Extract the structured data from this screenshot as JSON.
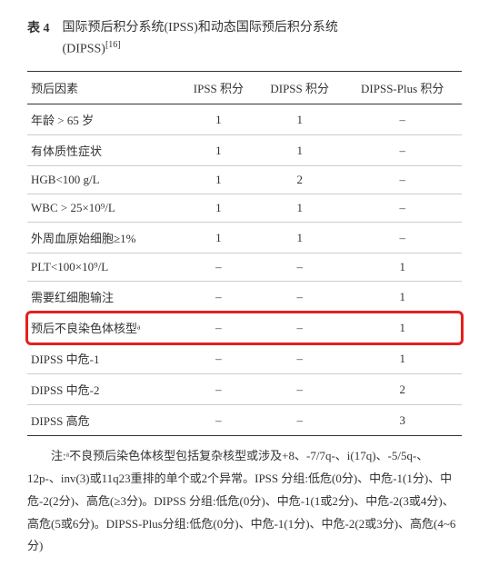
{
  "title": {
    "label": "表 4",
    "text_line1": "国际预后积分系统(IPSS)和动态国际预后积分系统",
    "text_line2": "(DIPSS)",
    "ref": "[16]"
  },
  "columns": [
    "预后因素",
    "IPSS 积分",
    "DIPSS 积分",
    "DIPSS-Plus 积分"
  ],
  "rows": [
    {
      "factor": "年龄 > 65 岁",
      "ipss": "1",
      "dipss": "1",
      "plus": "–",
      "highlight": false
    },
    {
      "factor": "有体质性症状",
      "ipss": "1",
      "dipss": "1",
      "plus": "–",
      "highlight": false
    },
    {
      "factor": "HGB<100 g/L",
      "ipss": "1",
      "dipss": "2",
      "plus": "–",
      "highlight": false
    },
    {
      "factor": "WBC > 25×10⁹/L",
      "ipss": "1",
      "dipss": "1",
      "plus": "–",
      "highlight": false
    },
    {
      "factor": "外周血原始细胞≥1%",
      "ipss": "1",
      "dipss": "1",
      "plus": "–",
      "highlight": false
    },
    {
      "factor": "PLT<100×10⁹/L",
      "ipss": "–",
      "dipss": "–",
      "plus": "1",
      "highlight": false
    },
    {
      "factor": "需要红细胞输注",
      "ipss": "–",
      "dipss": "–",
      "plus": "1",
      "highlight": false
    },
    {
      "factor": "预后不良染色体核型ᵃ",
      "ipss": "–",
      "dipss": "–",
      "plus": "1",
      "highlight": true
    },
    {
      "factor": "DIPSS 中危-1",
      "ipss": "–",
      "dipss": "–",
      "plus": "1",
      "highlight": false
    },
    {
      "factor": "DIPSS 中危-2",
      "ipss": "–",
      "dipss": "–",
      "plus": "2",
      "highlight": false
    },
    {
      "factor": "DIPSS 高危",
      "ipss": "–",
      "dipss": "–",
      "plus": "3",
      "highlight": false
    }
  ],
  "footnote": "注:ᵃ不良预后染色体核型包括复杂核型或涉及+8、-7/7q-、i(17q)、-5/5q-、12p-、inv(3)或11q23重排的单个或2个异常。IPSS 分组:低危(0分)、中危-1(1分)、中危-2(2分)、高危(≥3分)。DIPSS 分组:低危(0分)、中危-1(1或2分)、中危-2(3或4分)、高危(5或6分)。DIPSS-Plus分组:低危(0分)、中危-1(1分)、中危-2(2或3分)、高危(4~6分)"
}
